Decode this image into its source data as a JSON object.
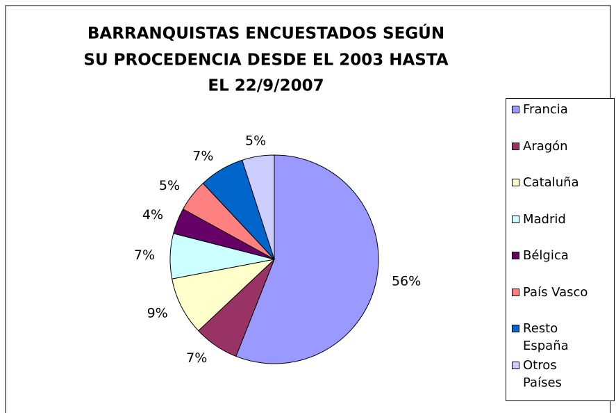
{
  "chart_data": {
    "type": "pie",
    "title": [
      "BARRANQUISTAS ENCUESTADOS SEGÚN",
      "SU PROCEDENCIA DESDE EL 2003 HASTA",
      "EL 22/9/2007"
    ],
    "categories": [
      "Francia",
      "Aragón",
      "Cataluña",
      "Madrid",
      "Bélgica",
      "País Vasco",
      "Resto España",
      "Otros Países"
    ],
    "values": [
      56,
      7,
      9,
      7,
      4,
      5,
      7,
      5
    ],
    "value_labels": [
      "56%",
      "7%",
      "9%",
      "7%",
      "4%",
      "5%",
      "7%",
      "5%"
    ],
    "colors": [
      "#9999ff",
      "#993366",
      "#ffffcc",
      "#ccffff",
      "#660066",
      "#ff8080",
      "#0066cc",
      "#ccccff"
    ],
    "legend": "right"
  }
}
